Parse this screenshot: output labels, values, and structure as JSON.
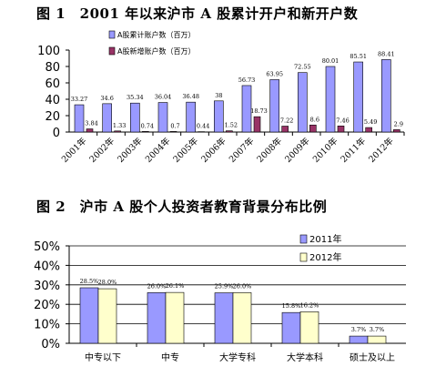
{
  "figure1": {
    "title": "图 1　2001 年以来沪市 A 股累计开户和新开户数"
  },
  "figure2": {
    "title": "图 2　沪市 A 股个人投资者教育背景分布比例"
  },
  "chart_data": [
    {
      "type": "bar",
      "title": "图 1　2001 年以来沪市 A 股累计开户和新开户数",
      "categories": [
        "2001年",
        "2002年",
        "2003年",
        "2004年",
        "2005年",
        "2006年",
        "2007年",
        "2008年",
        "2009年",
        "2010年",
        "2011年",
        "2012年"
      ],
      "series": [
        {
          "name": "A股累计账户数（百万）",
          "color": "#9999ff",
          "values": [
            33.27,
            34.6,
            35.34,
            36.04,
            36.48,
            38,
            56.73,
            63.95,
            72.55,
            80.01,
            85.51,
            88.41
          ],
          "labels": [
            "33.27",
            "34.6",
            "35.34",
            "36.04",
            "36.48",
            "38",
            "56.73",
            "63.95",
            "72.55",
            "80.01",
            "85.51",
            "88.41"
          ]
        },
        {
          "name": "A股新增账户数（百万）",
          "color": "#993366",
          "values": [
            3.84,
            1.33,
            0.74,
            0.7,
            0.44,
            1.52,
            18.73,
            7.22,
            8.6,
            7.46,
            5.49,
            2.9
          ],
          "labels": [
            "3.84",
            "1.33",
            "0.74",
            "0.7",
            "0.44",
            "1.52",
            "18.73",
            "7.22",
            "8.6",
            "7.46",
            "5.49",
            "2.9"
          ]
        }
      ],
      "ylim": [
        0,
        100
      ],
      "yticks": [
        0,
        20,
        40,
        60,
        80,
        100
      ],
      "grid": false,
      "legend": "top-left"
    },
    {
      "type": "bar",
      "title": "图 2　沪市 A 股个人投资者教育背景分布比例",
      "categories": [
        "中专以下",
        "中专",
        "大学专科",
        "大学本科",
        "硕士及以上"
      ],
      "series": [
        {
          "name": "2011年",
          "color": "#9999ff",
          "values": [
            28.5,
            26.0,
            25.9,
            15.8,
            3.7
          ],
          "labels": [
            "28.5%",
            "26.0%",
            "25.9%",
            "15.8%",
            "3.7%"
          ]
        },
        {
          "name": "2012年",
          "color": "#ffffcc",
          "values": [
            28.0,
            26.1,
            26.0,
            16.2,
            3.7
          ],
          "labels": [
            "28.0%",
            "26.1%",
            "26.0%",
            "16.2%",
            "3.7%"
          ]
        }
      ],
      "ylim": [
        0,
        50
      ],
      "yticks": [
        "0%",
        "10%",
        "20%",
        "30%",
        "40%",
        "50%"
      ],
      "grid": true,
      "legend": "top-right"
    }
  ]
}
